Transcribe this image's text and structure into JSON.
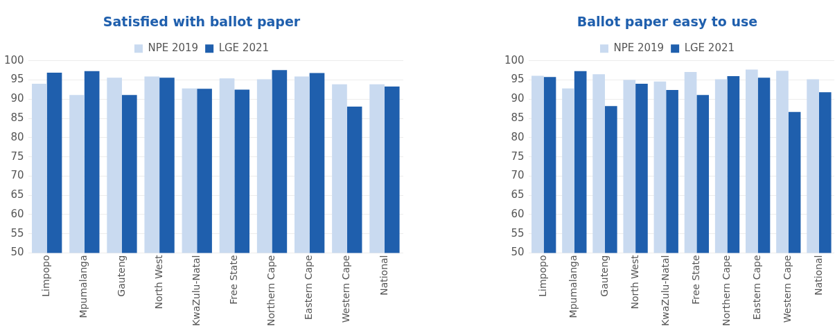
{
  "chart_data": [
    {
      "type": "bar",
      "title": "Satisfied with ballot paper",
      "categories": [
        "Limpopo",
        "Mpumalanga",
        "Gauteng",
        "North West",
        "KwaZulu-Natal",
        "Free State",
        "Northern Cape",
        "Eastern Cape",
        "Western Cape",
        "National"
      ],
      "series": [
        {
          "name": "NPE 2019",
          "color": "#c9daf0",
          "values": [
            94.0,
            91.1,
            95.6,
            95.9,
            92.8,
            95.4,
            95.2,
            95.9,
            93.9,
            93.9
          ]
        },
        {
          "name": "LGE 2021",
          "color": "#1f5fad",
          "values": [
            96.9,
            97.3,
            91.1,
            95.6,
            92.7,
            92.5,
            97.6,
            96.8,
            88.1,
            93.3
          ]
        }
      ],
      "ylim": [
        50,
        100
      ],
      "yticks": [
        50,
        55,
        60,
        65,
        70,
        75,
        80,
        85,
        90,
        95,
        100
      ],
      "grid": "y",
      "legend": "top"
    },
    {
      "type": "bar",
      "title": "Ballot paper easy to use",
      "categories": [
        "Limpopo",
        "Mpumalanga",
        "Gauteng",
        "North West",
        "KwaZulu-Natal",
        "Free State",
        "Northern Cape",
        "Eastern Cape",
        "Western Cape",
        "National"
      ],
      "series": [
        {
          "name": "NPE 2019",
          "color": "#c9daf0",
          "values": [
            96.1,
            92.8,
            96.5,
            95.0,
            94.6,
            97.1,
            95.2,
            97.7,
            97.4,
            95.2
          ]
        },
        {
          "name": "LGE 2021",
          "color": "#1f5fad",
          "values": [
            95.8,
            97.3,
            88.2,
            94.0,
            92.4,
            91.1,
            96.0,
            95.6,
            86.7,
            91.8
          ]
        }
      ],
      "ylim": [
        50,
        100
      ],
      "yticks": [
        50,
        55,
        60,
        65,
        70,
        75,
        80,
        85,
        90,
        95,
        100
      ],
      "grid": "y",
      "legend": "top"
    }
  ]
}
